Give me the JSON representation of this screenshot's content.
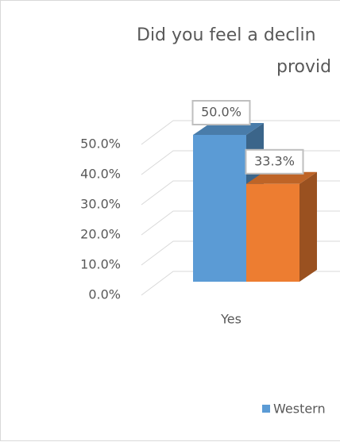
{
  "chart_data": {
    "type": "bar3d",
    "title": [
      "Did you feel a declin",
      "provid"
    ],
    "categories": [
      "Yes"
    ],
    "series": [
      {
        "name": "Western",
        "color": "#5b9bd5",
        "values": [
          50
        ],
        "value_labels": [
          "50.0%"
        ]
      },
      {
        "color": "#ed7d31",
        "values": [
          33.3
        ],
        "value_labels": [
          "33.3%"
        ]
      }
    ],
    "ylim": [
      0,
      50
    ],
    "yticks": [
      {
        "value": 0,
        "label": "0.0%"
      },
      {
        "value": 10,
        "label": "10.0%"
      },
      {
        "value": 20,
        "label": "20.0%"
      },
      {
        "value": 30,
        "label": "30.0%"
      },
      {
        "value": 40,
        "label": "40.0%"
      },
      {
        "value": 50,
        "label": "50.0%"
      }
    ],
    "grid": true
  }
}
